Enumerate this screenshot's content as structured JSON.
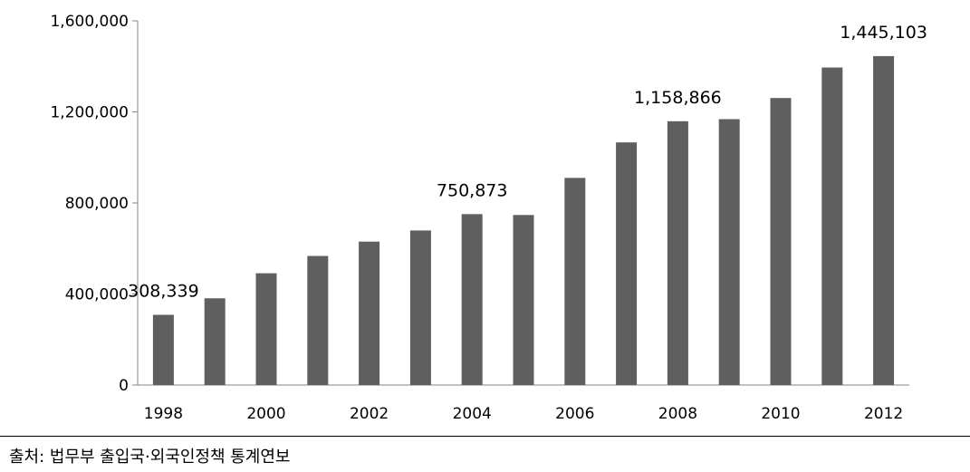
{
  "chart_data": {
    "type": "bar",
    "categories": [
      "1998",
      "1999",
      "2000",
      "2001",
      "2002",
      "2003",
      "2004",
      "2005",
      "2006",
      "2007",
      "2008",
      "2009",
      "2010",
      "2011",
      "2012"
    ],
    "values": [
      308339,
      381000,
      491000,
      567000,
      630000,
      679000,
      750873,
      747000,
      910000,
      1066000,
      1158866,
      1168000,
      1261000,
      1395000,
      1445103
    ],
    "x_tick_labels": [
      "1998",
      "2000",
      "2002",
      "2004",
      "2006",
      "2008",
      "2010",
      "2012"
    ],
    "y_ticks": [
      0,
      400000,
      800000,
      1200000,
      1600000
    ],
    "y_tick_labels": [
      "0",
      "400,000",
      "800,000",
      "1,200,000",
      "1,600,000"
    ],
    "ylim": [
      0,
      1600000
    ],
    "data_labels": [
      {
        "category": "1998",
        "text": "308,339"
      },
      {
        "category": "2004",
        "text": "750,873"
      },
      {
        "category": "2008",
        "text": "1,158,866"
      },
      {
        "category": "2012",
        "text": "1,445,103"
      }
    ],
    "bar_color": "#5f5f5f",
    "axis_color": "#868686",
    "grid": false,
    "title": "",
    "xlabel": "",
    "ylabel": ""
  },
  "source_text": "출처:  법무부  출입국·외국인정책  통계연보"
}
